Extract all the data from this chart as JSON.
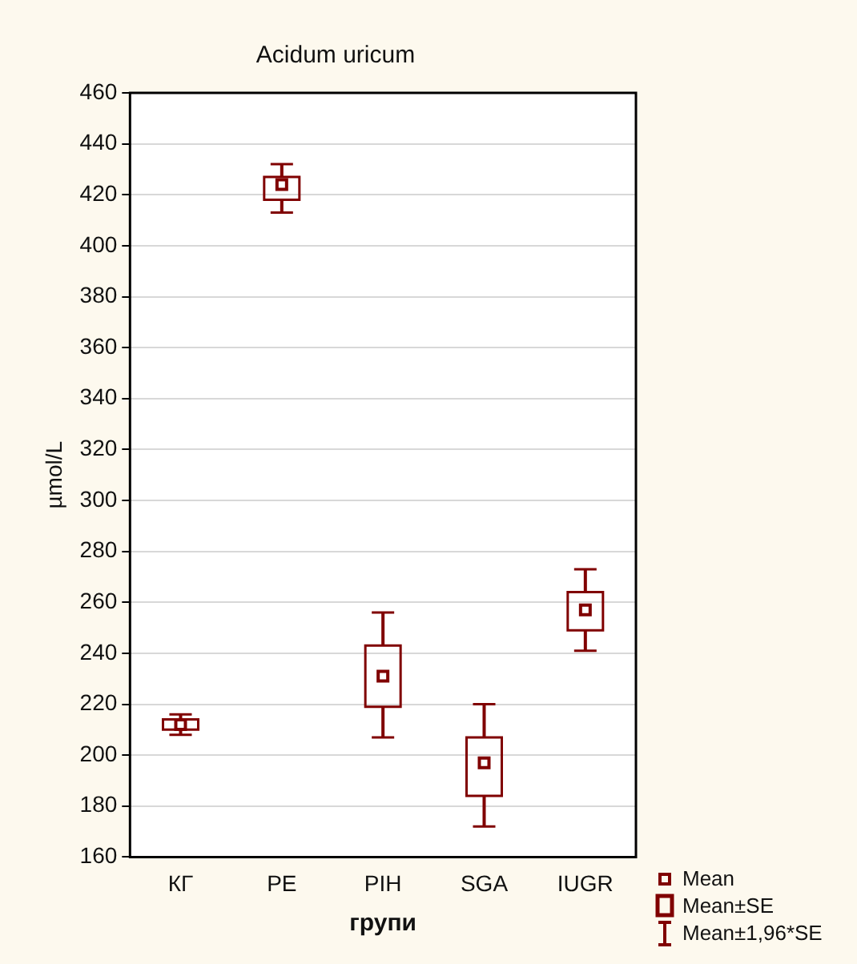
{
  "chart_data": {
    "type": "box",
    "title": "Acidum uricum",
    "xlabel": "групи",
    "ylabel": "µmol/L",
    "categories": [
      "КГ",
      "PE",
      "PIH",
      "SGA",
      "IUGR"
    ],
    "series": [
      {
        "color": "#800000",
        "boxes": [
          {
            "low": 208,
            "q1": 210,
            "median": 212,
            "q3": 214,
            "high": 216
          },
          {
            "low": 413,
            "q1": 418,
            "median": 424,
            "q3": 427,
            "high": 432
          },
          {
            "low": 207,
            "q1": 219,
            "median": 231,
            "q3": 243,
            "high": 256
          },
          {
            "low": 172,
            "q1": 184,
            "median": 197,
            "q3": 207,
            "high": 220
          },
          {
            "low": 241,
            "q1": 249,
            "median": 257,
            "q3": 264,
            "high": 273
          }
        ]
      }
    ],
    "ylim": [
      160,
      460
    ],
    "yticks": [
      160,
      180,
      200,
      220,
      240,
      260,
      280,
      300,
      320,
      340,
      360,
      380,
      400,
      420,
      440,
      460
    ],
    "grid": "y",
    "marker": "square",
    "annotations": [
      "Mean",
      "Mean±SE",
      "Mean±1,96*SE"
    ]
  }
}
